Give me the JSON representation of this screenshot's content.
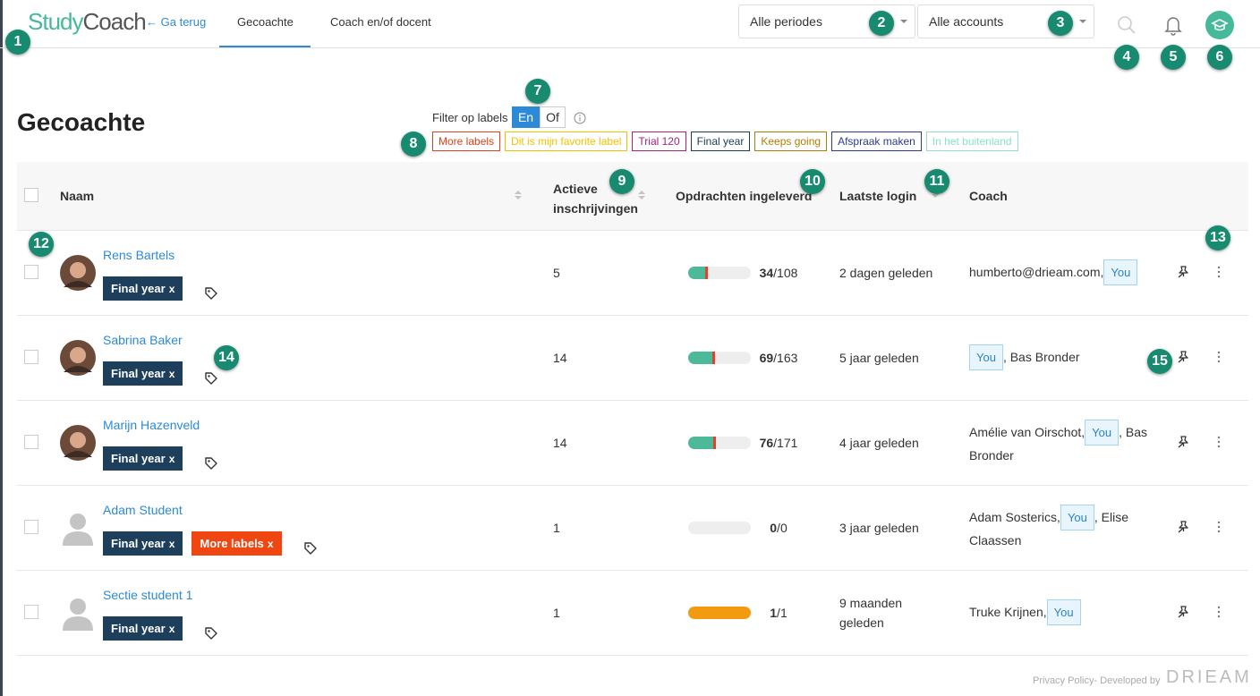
{
  "header": {
    "logo_study": "Study",
    "logo_coach": "Coach",
    "back": "Ga terug",
    "tabs": [
      "Gecoachte",
      "Coach en/of docent"
    ],
    "period_select": "Alle periodes",
    "account_select": "Alle accounts"
  },
  "callouts": [
    "1",
    "2",
    "3",
    "4",
    "5",
    "6",
    "7",
    "8",
    "9",
    "10",
    "11",
    "12",
    "13",
    "14",
    "15"
  ],
  "page_title": "Gecoachte",
  "filter": {
    "label": "Filter op labels",
    "options": [
      "En",
      "Of"
    ],
    "labels": [
      {
        "text": "More labels",
        "color": "#e0401c"
      },
      {
        "text": "Dit is mijn favorite label",
        "color": "#f2c200"
      },
      {
        "text": "Trial 120",
        "color": "#a3237e"
      },
      {
        "text": "Final year",
        "color": "#1d3a57"
      },
      {
        "text": "Keeps going",
        "color": "#b07d00"
      },
      {
        "text": "Afspraak maken",
        "color": "#2d3a8c"
      },
      {
        "text": "In het buitenland",
        "color": "#8fe0c6"
      }
    ]
  },
  "table": {
    "headers": [
      "Naam",
      "Actieve inschrijvingen",
      "Opdrachten ingeleverd",
      "Laatste login",
      "Coach"
    ],
    "progress_separator": "/",
    "rows": [
      {
        "name": "Rens Bartels",
        "avatar": "photo",
        "tags": [
          {
            "text": "Final year",
            "remove": "x",
            "color": "#1d3f5c"
          }
        ],
        "enrollments": 5,
        "done": 34,
        "total": 108,
        "bar_color": "#4cb99a",
        "last_login": "2 dagen geleden",
        "coach": [
          {
            "text": "humberto@drieam.com,"
          },
          {
            "badge": "You"
          }
        ]
      },
      {
        "name": "Sabrina Baker",
        "avatar": "photo",
        "tags": [
          {
            "text": "Final year",
            "remove": "x",
            "color": "#1d3f5c"
          }
        ],
        "enrollments": 14,
        "done": 69,
        "total": 163,
        "bar_color": "#4cb99a",
        "last_login": "5 jaar geleden",
        "coach": [
          {
            "badge": "You"
          },
          {
            "text": ", Bas Bronder"
          }
        ]
      },
      {
        "name": "Marijn Hazenveld",
        "avatar": "photo",
        "tags": [
          {
            "text": "Final year",
            "remove": "x",
            "color": "#1d3f5c"
          }
        ],
        "enrollments": 14,
        "done": 76,
        "total": 171,
        "bar_color": "#4cb99a",
        "last_login": "4 jaar geleden",
        "coach": [
          {
            "text": "Amélie van Oirschot,"
          },
          {
            "badge": "You"
          },
          {
            "text": ", Bas Bronder"
          }
        ]
      },
      {
        "name": "Adam Student",
        "avatar": "default",
        "tags": [
          {
            "text": "Final year",
            "remove": "x",
            "color": "#1d3f5c"
          },
          {
            "text": "More labels",
            "remove": "x",
            "color": "#ef4612"
          }
        ],
        "enrollments": 1,
        "done": 0,
        "total": 0,
        "bar_color": "#4cb99a",
        "last_login": "3 jaar geleden",
        "coach": [
          {
            "text": "Adam Sosterics,"
          },
          {
            "badge": "You"
          },
          {
            "text": ", Elise Claassen"
          }
        ]
      },
      {
        "name": "Sectie student 1",
        "avatar": "default",
        "tags": [
          {
            "text": "Final year",
            "remove": "x",
            "color": "#1d3f5c"
          }
        ],
        "enrollments": 1,
        "done": 1,
        "total": 1,
        "bar_color": "#f29b10",
        "last_login": "9 maanden geleden",
        "coach": [
          {
            "text": "Truke Krijnen,"
          },
          {
            "badge": "You"
          }
        ]
      }
    ]
  },
  "footer": {
    "text": "Privacy Policy- Developed by",
    "brand": "DRIEAM"
  }
}
